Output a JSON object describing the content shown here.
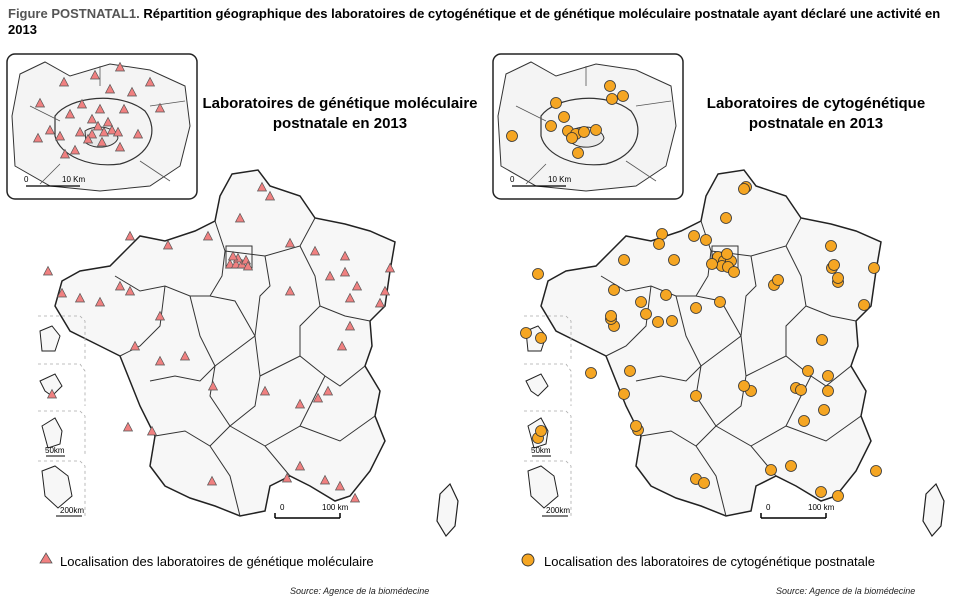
{
  "figure": {
    "label": "Figure POSTNATAL1.",
    "title": "Répartition géographique des laboratoires de cytogénétique et de génétique moléculaire postnatale ayant déclaré une activité en 2013"
  },
  "left_map": {
    "title_line1": "Laboratoires de génétique moléculaire",
    "title_line2": "postnatale en 2013",
    "legend_label": "Localisation des laboratoires de génétique moléculaire",
    "marker_icon": "triangle-marker-icon",
    "marker_color": "#f08080",
    "inset_scale_zero": "0",
    "inset_scale_label": "10 Km",
    "main_scale_zero": "0",
    "main_scale_label": "100 km",
    "dom_scale_a": "50km",
    "dom_scale_b": "200km",
    "source": "Source: Agence de la biomédecine"
  },
  "right_map": {
    "title_line1": "Laboratoires de cytogénétique",
    "title_line2": "postnatale en 2013",
    "legend_label": "Localisation des laboratoires de cytogénétique postnatale",
    "marker_icon": "circle-marker-icon",
    "marker_color": "#f5a623",
    "inset_scale_zero": "0",
    "inset_scale_label": "10 Km",
    "main_scale_zero": "0",
    "main_scale_label": "100 km",
    "dom_scale_a": "50km",
    "dom_scale_b": "200km",
    "source": "Source: Agence de la biomédecine"
  }
}
